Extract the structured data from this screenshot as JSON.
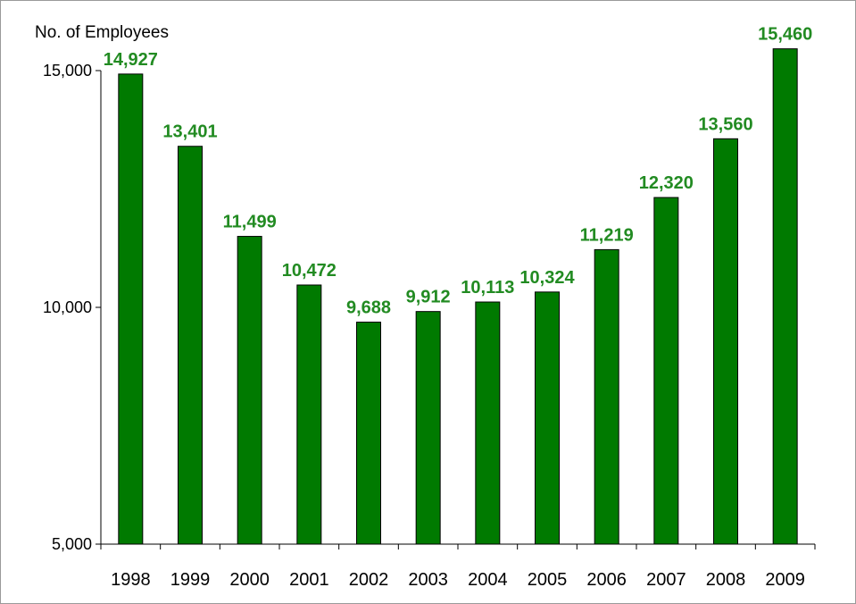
{
  "chart_data": {
    "type": "bar",
    "ylabel": "No. of Employees",
    "xlabel": "",
    "categories": [
      "1998",
      "1999",
      "2000",
      "2001",
      "2002",
      "2003",
      "2004",
      "2005",
      "2006",
      "2007",
      "2008",
      "2009"
    ],
    "values": [
      14927,
      13401,
      11499,
      10472,
      9688,
      9912,
      10113,
      10324,
      11219,
      12320,
      13560,
      15460
    ],
    "data_labels": [
      "14,927",
      "13,401",
      "11,499",
      "10,472",
      "9,688",
      "9,912",
      "10,113",
      "10,324",
      "11,219",
      "12,320",
      "13,560",
      "15,460"
    ],
    "ylim": [
      5000,
      15000
    ],
    "yticks": [
      5000,
      10000,
      15000
    ],
    "ytick_labels": [
      "5,000",
      "10,000",
      "15,000"
    ],
    "grid": false,
    "legend": "none",
    "bar_color": "#007a00",
    "bar_edge_color": "#000000",
    "label_color": "#228b22"
  }
}
